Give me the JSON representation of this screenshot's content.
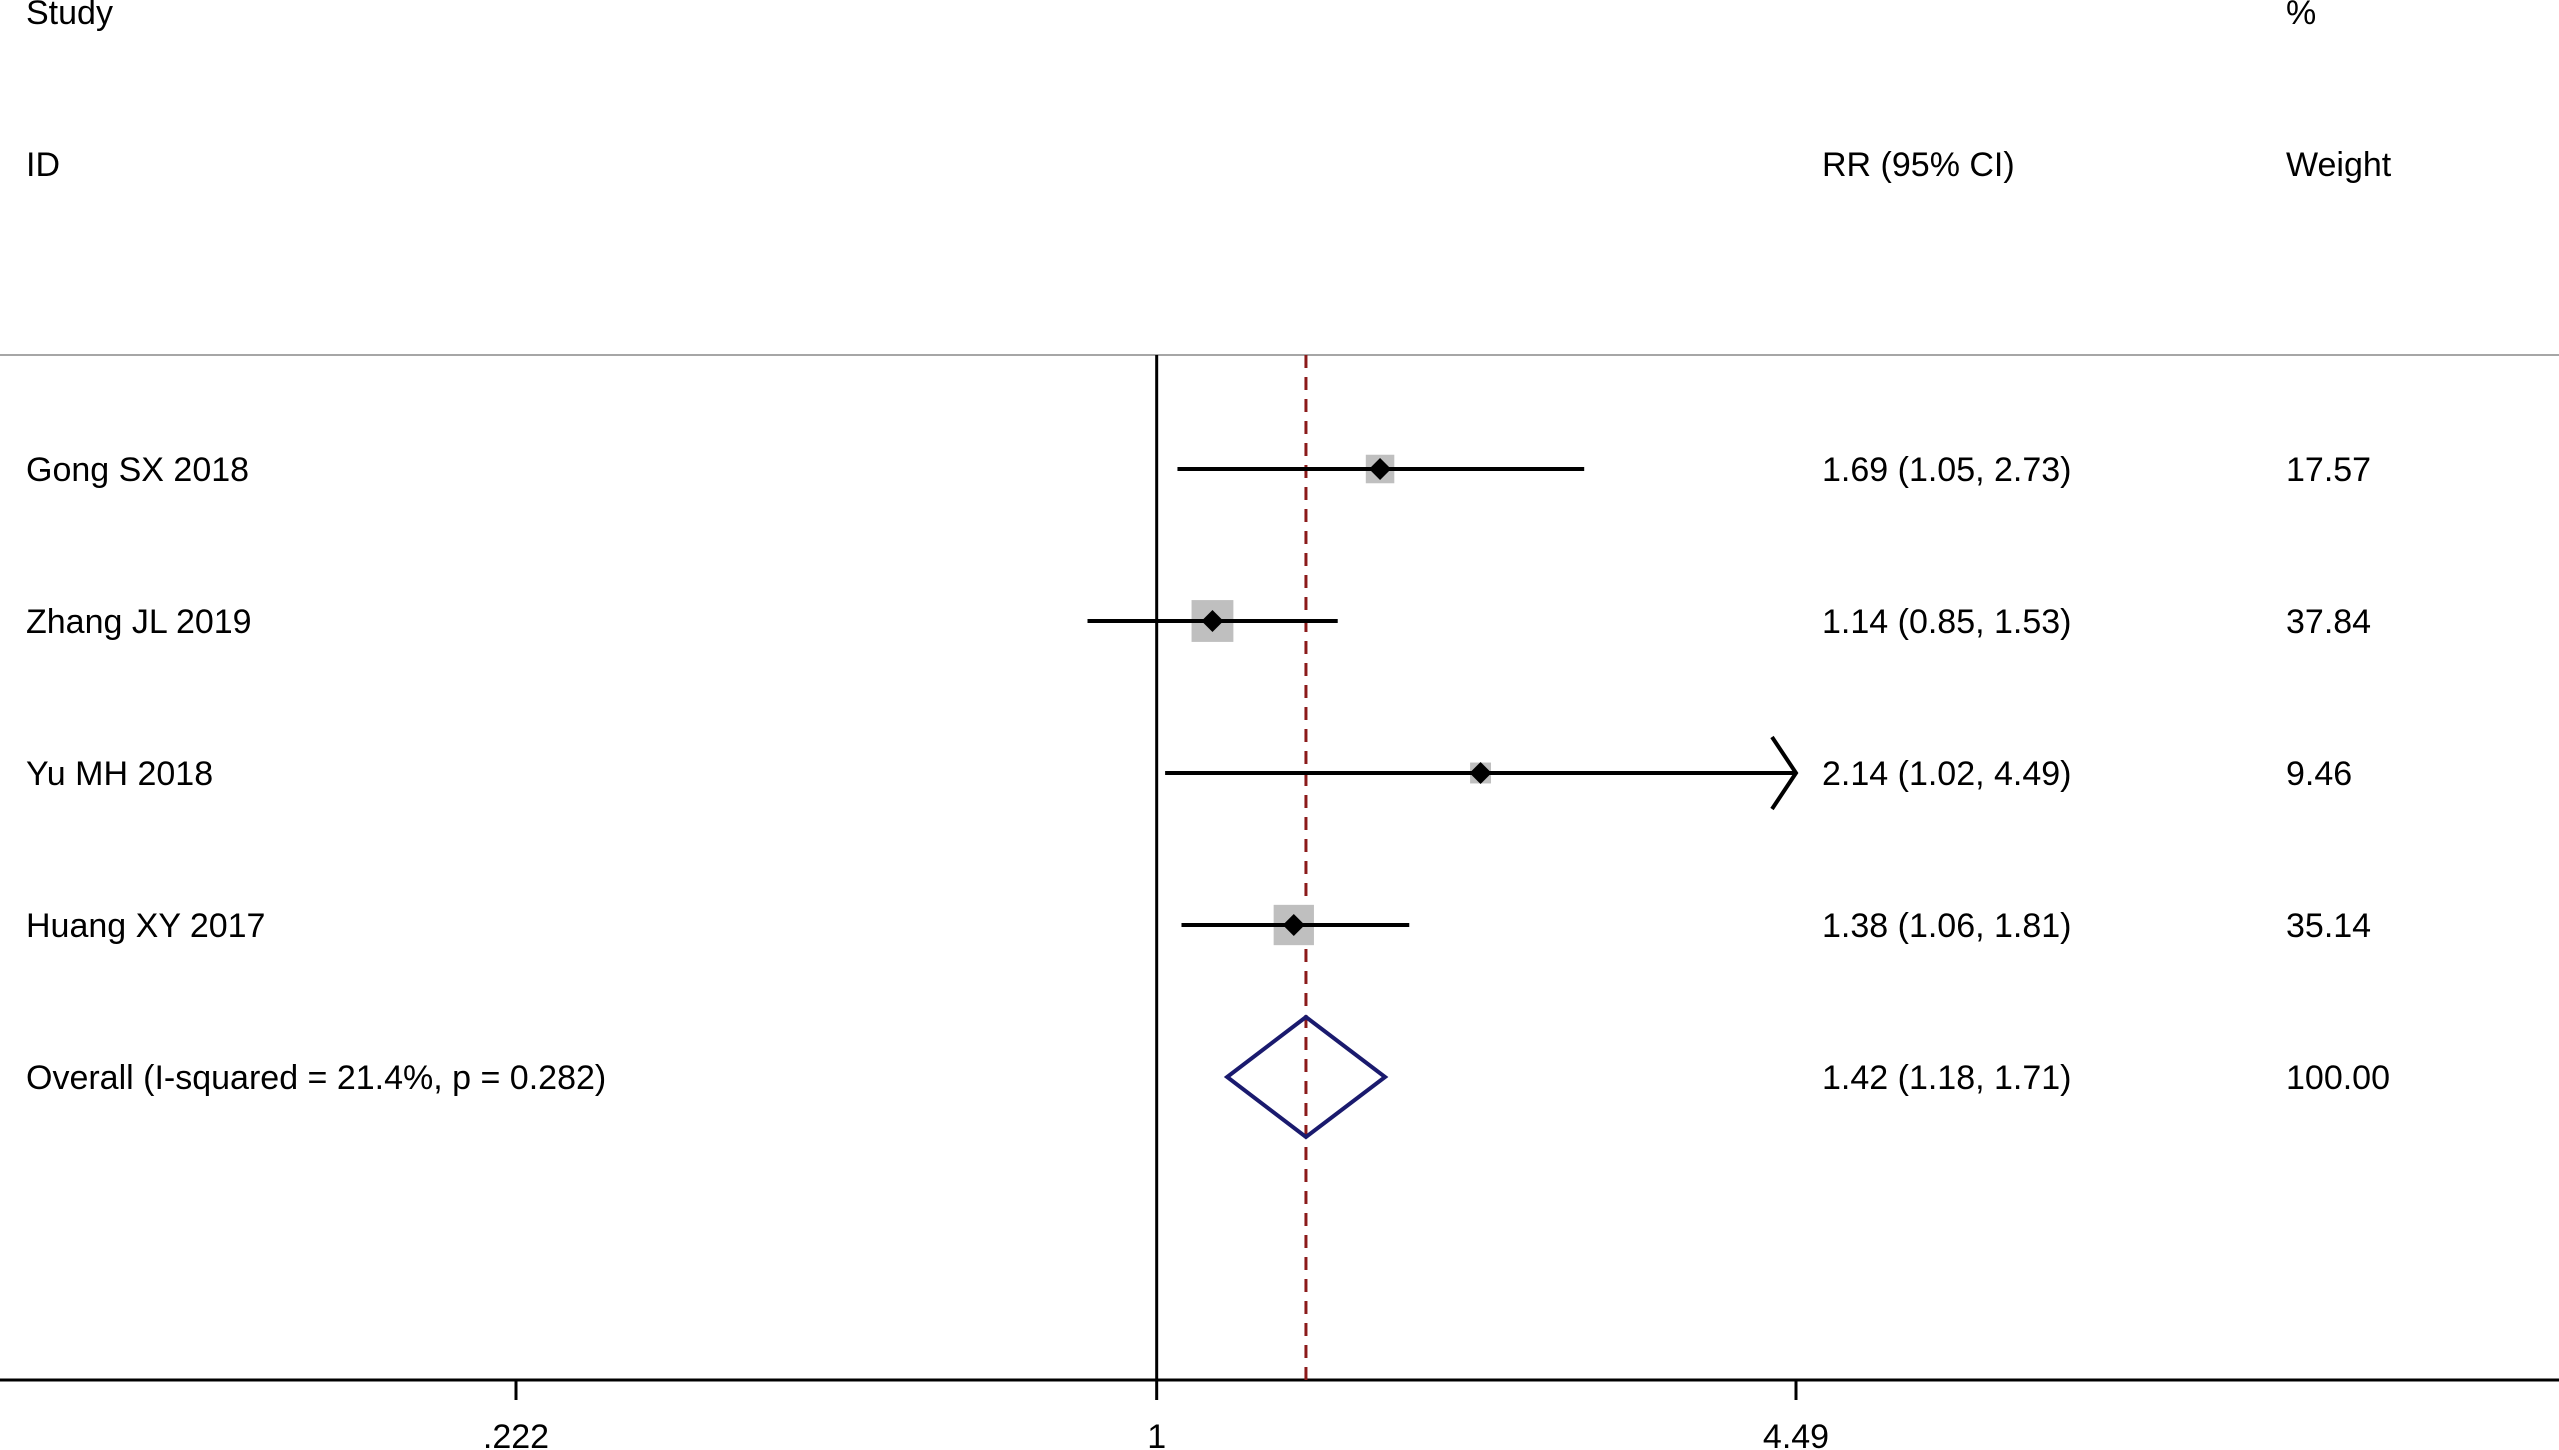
{
  "headers": {
    "study_line1": "Study",
    "study_line2": "ID",
    "estimate": "RR (95% CI)",
    "weight_line1": "%",
    "weight_line2": "Weight"
  },
  "colors": {
    "point": "#000000",
    "weight_box": "#bfbfbf",
    "pooled_diamond": "#1a1a6e",
    "overall_line": "#8b1a1a",
    "reference_line": "#000000",
    "separator": "#a6a6a6"
  },
  "chart_data": {
    "type": "forest",
    "scale": "log",
    "xlim": [
      0.222,
      4.49
    ],
    "reference_value": 1,
    "overall_line_value": 1.42,
    "x_ticks": [
      {
        "value": 0.222,
        "label": ".222"
      },
      {
        "value": 1,
        "label": "1"
      },
      {
        "value": 4.49,
        "label": "4.49"
      }
    ],
    "studies": [
      {
        "name": "Gong SX 2018",
        "rr": 1.69,
        "lower": 1.05,
        "upper": 2.73,
        "ci_text": "1.69 (1.05, 2.73)",
        "weight": 17.57,
        "weight_text": "17.57",
        "arrow_right": false
      },
      {
        "name": "Zhang JL 2019",
        "rr": 1.14,
        "lower": 0.85,
        "upper": 1.53,
        "ci_text": "1.14 (0.85, 1.53)",
        "weight": 37.84,
        "weight_text": "37.84",
        "arrow_right": false
      },
      {
        "name": "Yu MH 2018",
        "rr": 2.14,
        "lower": 1.02,
        "upper": 4.49,
        "ci_text": "2.14 (1.02, 4.49)",
        "weight": 9.46,
        "weight_text": "9.46",
        "arrow_right": true
      },
      {
        "name": "Huang XY 2017",
        "rr": 1.38,
        "lower": 1.06,
        "upper": 1.81,
        "ci_text": "1.38 (1.06, 1.81)",
        "weight": 35.14,
        "weight_text": "35.14",
        "arrow_right": false
      }
    ],
    "overall": {
      "name": "Overall  (I-squared = 21.4%, p = 0.282)",
      "rr": 1.42,
      "lower": 1.18,
      "upper": 1.71,
      "ci_text": "1.42 (1.18, 1.71)",
      "weight_text": "100.00"
    }
  }
}
